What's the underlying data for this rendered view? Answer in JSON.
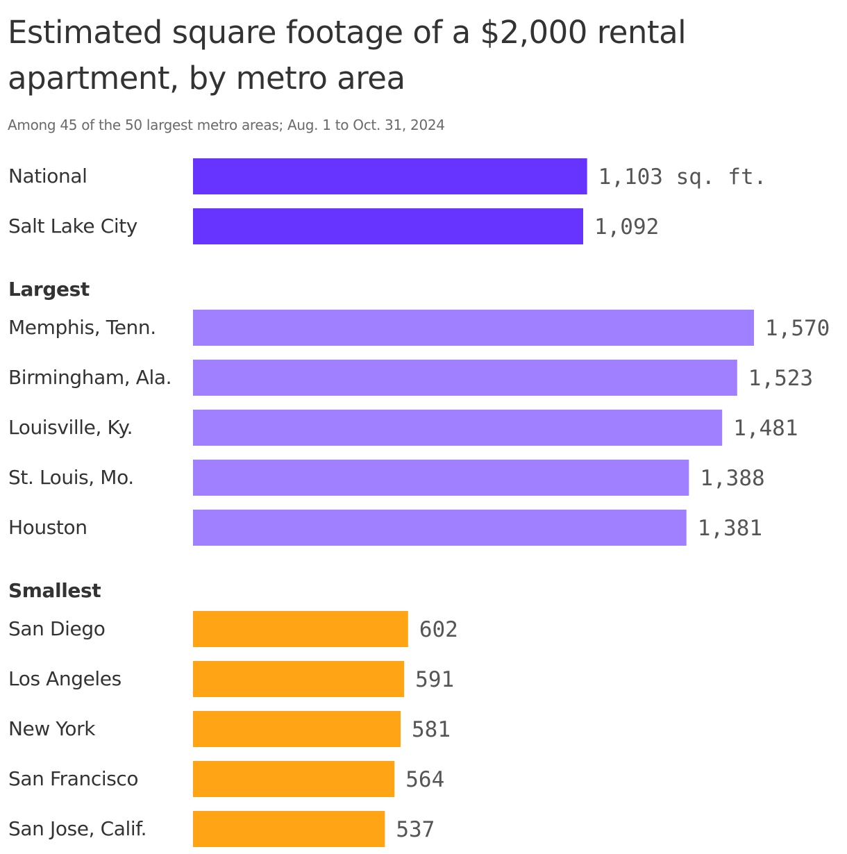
{
  "colors": {
    "highlight": "#6633ff",
    "largest": "#a080ff",
    "smallest": "#ffa515"
  },
  "chart_data": {
    "type": "bar",
    "orientation": "horizontal",
    "title": "Estimated square footage of a $2,000 rental apartment, by metro area",
    "subtitle": "Among 45 of the 50 largest metro areas; Aug. 1 to Oct. 31, 2024",
    "unit": "sq. ft.",
    "xlim": [
      0,
      1570
    ],
    "grid": false,
    "groups": [
      {
        "label": "",
        "color_key": "highlight",
        "rows": [
          {
            "category": "National",
            "value": 1103,
            "value_label": "1,103 sq. ft."
          },
          {
            "category": "Salt Lake City",
            "value": 1092,
            "value_label": "1,092"
          }
        ]
      },
      {
        "label": "Largest",
        "color_key": "largest",
        "rows": [
          {
            "category": "Memphis, Tenn.",
            "value": 1570,
            "value_label": "1,570"
          },
          {
            "category": "Birmingham, Ala.",
            "value": 1523,
            "value_label": "1,523"
          },
          {
            "category": "Louisville, Ky.",
            "value": 1481,
            "value_label": "1,481"
          },
          {
            "category": "St. Louis, Mo.",
            "value": 1388,
            "value_label": "1,388"
          },
          {
            "category": "Houston",
            "value": 1381,
            "value_label": "1,381"
          }
        ]
      },
      {
        "label": "Smallest",
        "color_key": "smallest",
        "rows": [
          {
            "category": "San Diego",
            "value": 602,
            "value_label": "602"
          },
          {
            "category": "Los Angeles",
            "value": 591,
            "value_label": "591"
          },
          {
            "category": "New York",
            "value": 581,
            "value_label": "581"
          },
          {
            "category": "San Francisco",
            "value": 564,
            "value_label": "564"
          },
          {
            "category": "San Jose, Calif.",
            "value": 537,
            "value_label": "537"
          }
        ]
      }
    ]
  }
}
